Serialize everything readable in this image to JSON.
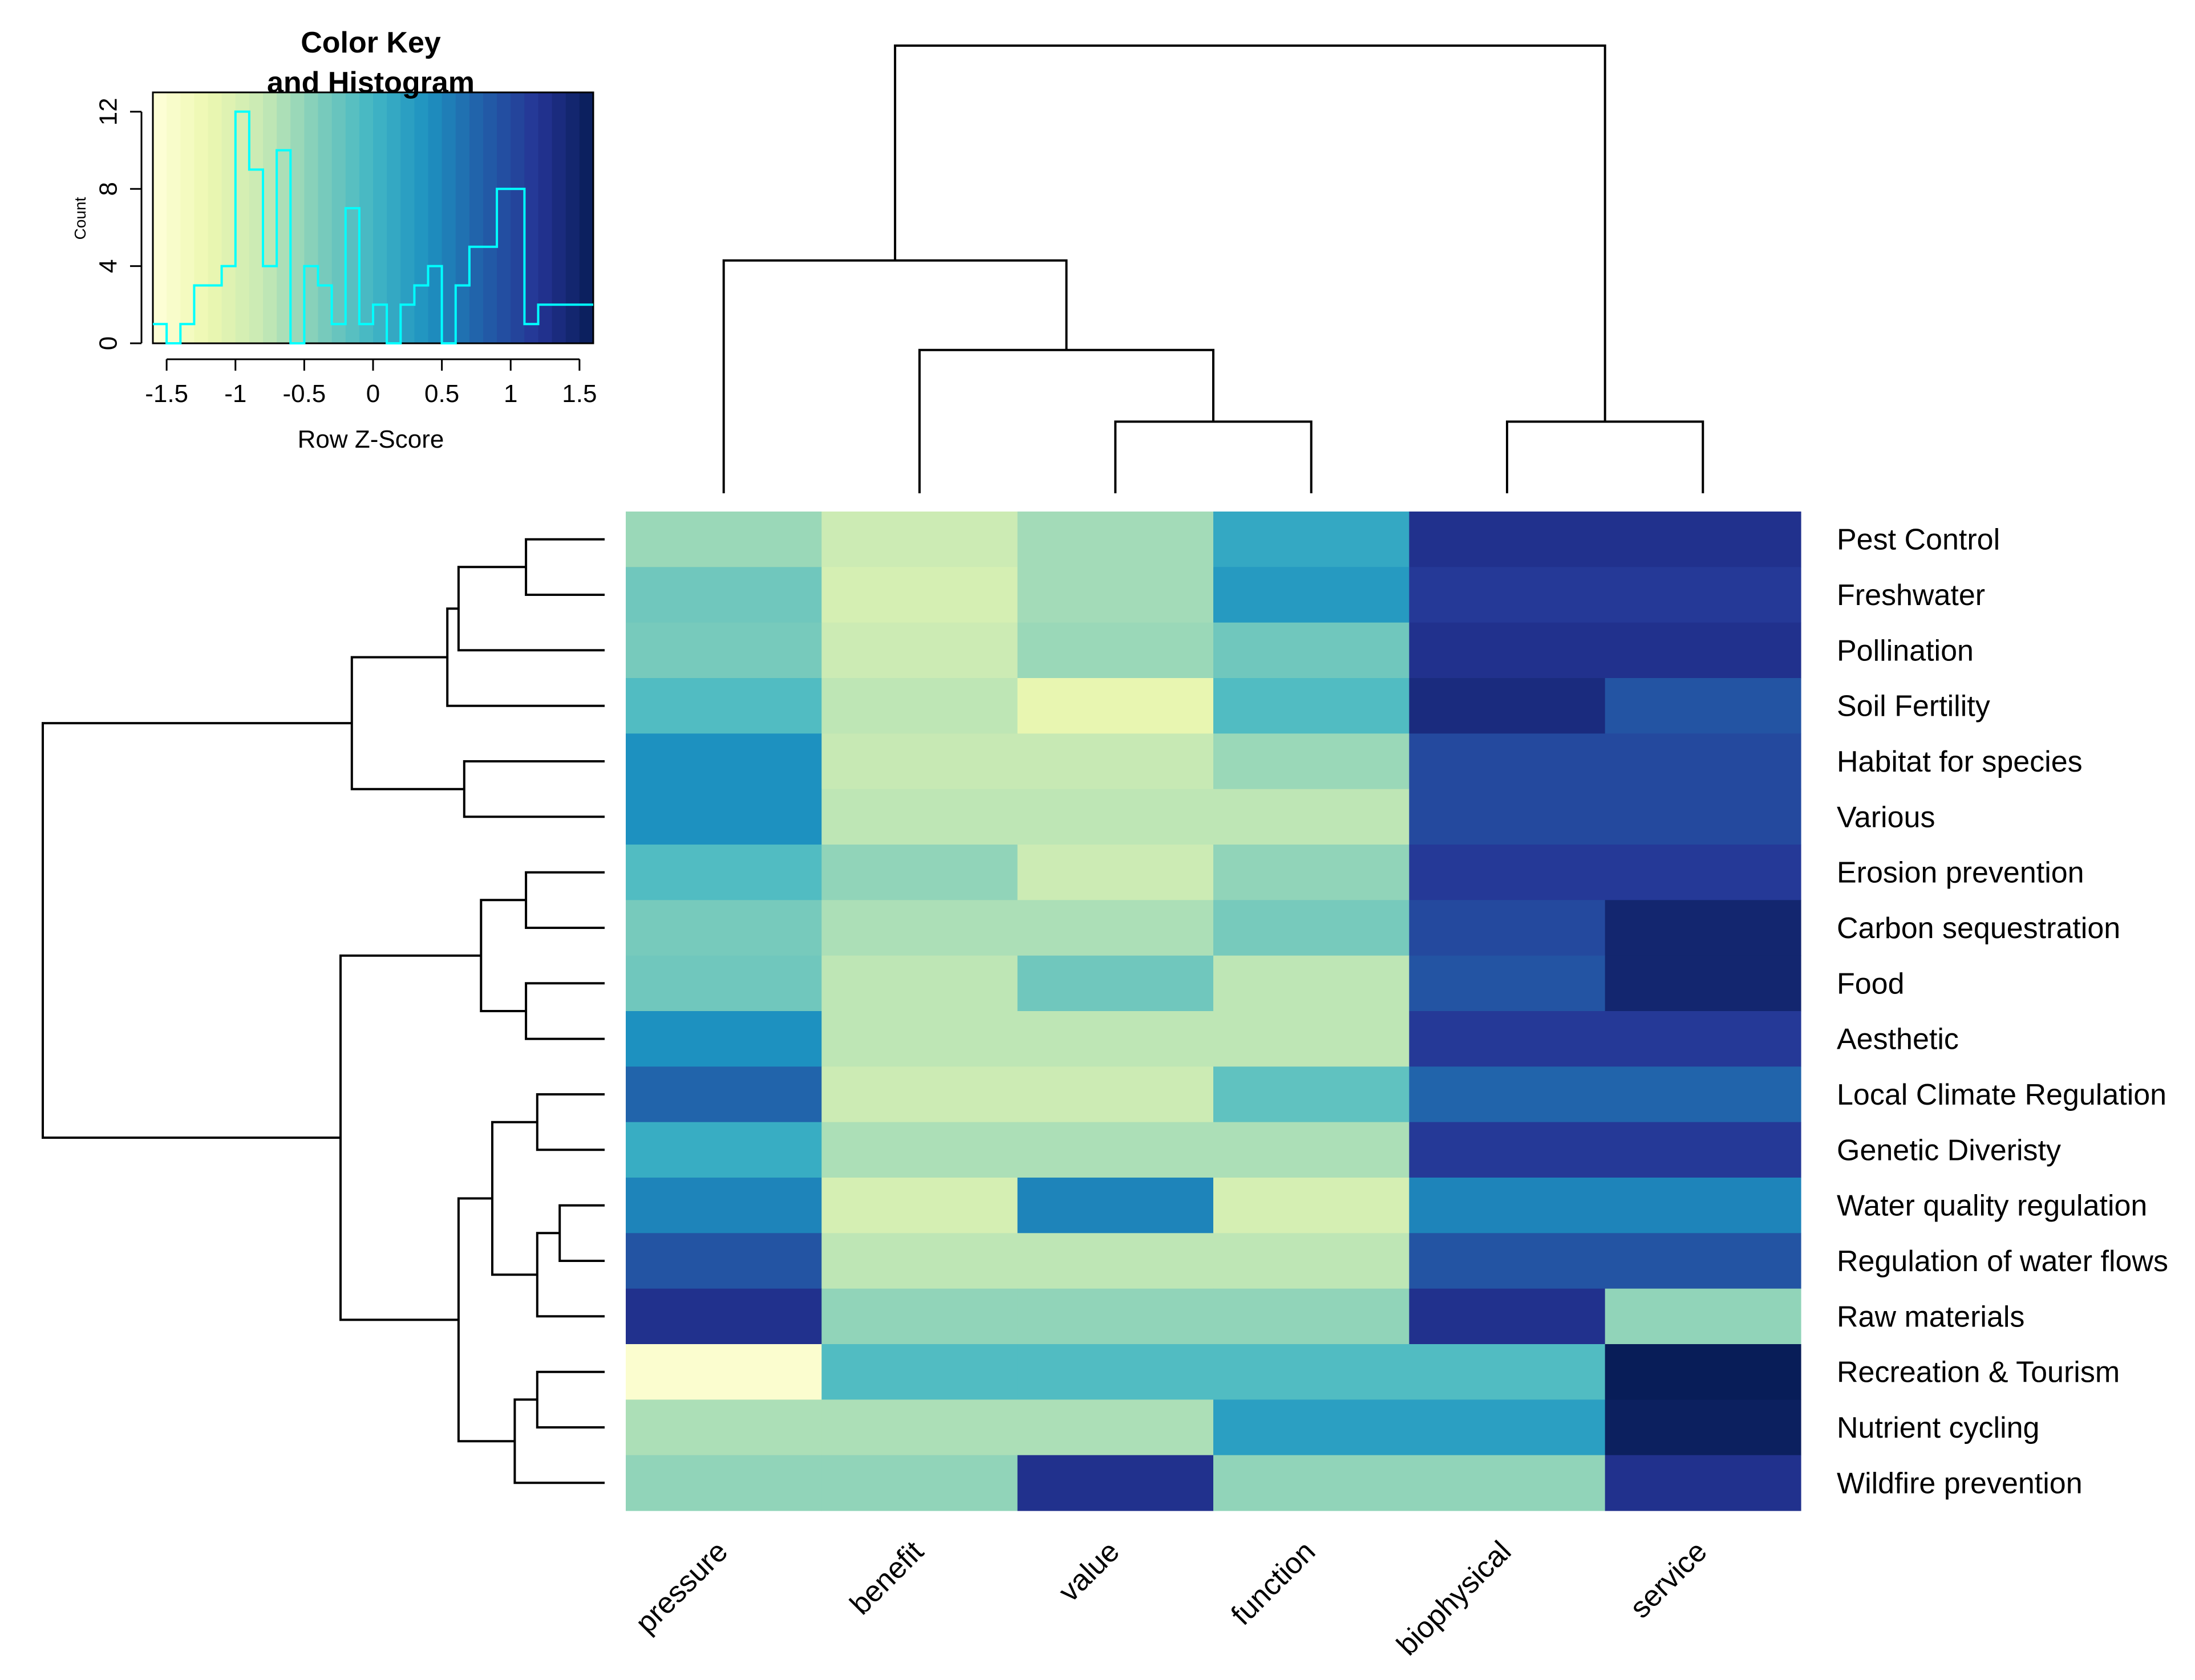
{
  "chart_data": {
    "type": "heatmap",
    "columns": [
      "pressure",
      "benefit",
      "value",
      "function",
      "biophysical",
      "service"
    ],
    "rows": [
      "Pest Control",
      "Freshwater",
      "Pollination",
      "Soil Fertility",
      "Habitat for species",
      "Various",
      "Erosion prevention",
      "Carbon sequestration",
      "Food",
      "Aesthetic",
      "Local Climate Regulation",
      "Genetic Diveristy",
      "Water quality regulation",
      "Regulation of water flows",
      "Raw materials",
      "Recreation & Tourism",
      "Nutrient cycling",
      "Wildfire prevention"
    ],
    "values": [
      [
        -0.55,
        -0.85,
        -0.6,
        0.15,
        1.25,
        1.25
      ],
      [
        -0.3,
        -0.95,
        -0.6,
        0.3,
        1.15,
        1.15
      ],
      [
        -0.35,
        -0.85,
        -0.55,
        -0.3,
        1.25,
        1.25
      ],
      [
        -0.1,
        -0.75,
        -1.15,
        -0.1,
        1.35,
        0.9
      ],
      [
        0.4,
        -0.8,
        -0.8,
        -0.55,
        1.0,
        1.0
      ],
      [
        0.4,
        -0.75,
        -0.75,
        -0.75,
        1.0,
        1.0
      ],
      [
        -0.1,
        -0.5,
        -0.85,
        -0.5,
        1.15,
        1.15
      ],
      [
        -0.35,
        -0.65,
        -0.65,
        -0.35,
        1.0,
        1.45
      ],
      [
        -0.3,
        -0.75,
        -0.3,
        -0.75,
        0.9,
        1.45
      ],
      [
        0.4,
        -0.75,
        -0.75,
        -0.75,
        1.15,
        1.15
      ],
      [
        0.75,
        -0.85,
        -0.85,
        -0.2,
        0.75,
        0.75
      ],
      [
        0.1,
        -0.65,
        -0.65,
        -0.65,
        1.15,
        1.15
      ],
      [
        0.5,
        -0.95,
        0.5,
        -0.95,
        0.5,
        0.5
      ],
      [
        0.9,
        -0.75,
        -0.75,
        -0.75,
        0.9,
        0.9
      ],
      [
        1.25,
        -0.5,
        -0.5,
        -0.5,
        1.25,
        -0.5
      ],
      [
        -1.5,
        -0.1,
        -0.1,
        -0.1,
        -0.1,
        1.6
      ],
      [
        -0.65,
        -0.65,
        -0.65,
        0.25,
        0.25,
        1.55
      ],
      [
        -0.5,
        -0.5,
        1.25,
        -0.5,
        -0.5,
        1.25
      ]
    ],
    "color_scale": [
      "#ffffd9",
      "#edf8b1",
      "#c7e9b4",
      "#7fcdbb",
      "#41b6c4",
      "#1d91c0",
      "#225ea8",
      "#253494",
      "#081d58"
    ],
    "value_range": [
      -1.6,
      1.6
    ],
    "column_dendrogram": [
      {
        "left": 2,
        "right": 3,
        "height": 0.16
      },
      {
        "left": 1,
        "right": "n0",
        "height": 0.32
      },
      {
        "left": 4,
        "right": 5,
        "height": 0.16
      },
      {
        "left": 0,
        "right": "n1",
        "height": 0.52
      },
      {
        "left": "n3",
        "right": "n2",
        "height": 1.0
      }
    ],
    "row_dendrogram": [
      {
        "left": 0,
        "right": 1,
        "height": 0.14
      },
      {
        "left": "n0",
        "right": 2,
        "height": 0.26
      },
      {
        "left": "n1",
        "right": 3,
        "height": 0.28
      },
      {
        "left": 4,
        "right": 5,
        "height": 0.25
      },
      {
        "left": "n2",
        "right": "n3",
        "height": 0.45
      },
      {
        "left": 6,
        "right": 7,
        "height": 0.14
      },
      {
        "left": 8,
        "right": 9,
        "height": 0.14
      },
      {
        "left": "n5",
        "right": "n6",
        "height": 0.22
      },
      {
        "left": 10,
        "right": 11,
        "height": 0.12
      },
      {
        "left": 12,
        "right": 13,
        "height": 0.08
      },
      {
        "left": "n9",
        "right": 14,
        "height": 0.12
      },
      {
        "left": "n8",
        "right": "n10",
        "height": 0.2
      },
      {
        "left": 15,
        "right": 16,
        "height": 0.12
      },
      {
        "left": "n12",
        "right": 17,
        "height": 0.16
      },
      {
        "left": "n11",
        "right": "n13",
        "height": 0.26
      },
      {
        "left": "n7",
        "right": "n14",
        "height": 0.47
      },
      {
        "left": "n4",
        "right": "n15",
        "height": 1.0
      }
    ],
    "color_key": {
      "title_line1": "Color Key",
      "title_line2": "and Histogram",
      "xlabel": "Row Z-Score",
      "ylabel": "Count",
      "x_ticks": [
        -1.5,
        -1,
        -0.5,
        0,
        0.5,
        1,
        1.5
      ],
      "x_tick_labels": [
        "-1.5",
        "-1",
        "-0.5",
        "0",
        "0.5",
        "1",
        "1.5"
      ],
      "y_ticks": [
        0,
        4,
        8,
        12
      ],
      "y_tick_labels": [
        "0",
        "4",
        "8",
        "12"
      ],
      "xlim": [
        -1.6,
        1.6
      ],
      "ylim": [
        0,
        13
      ],
      "histogram_color": "#00ffff",
      "histogram": {
        "edges": [
          -1.6,
          -1.5,
          -1.4,
          -1.3,
          -1.2,
          -1.1,
          -1.0,
          -0.9,
          -0.8,
          -0.7,
          -0.6,
          -0.5,
          -0.4,
          -0.3,
          -0.2,
          -0.1,
          0.0,
          0.1,
          0.2,
          0.3,
          0.4,
          0.5,
          0.6,
          0.7,
          0.8,
          0.9,
          1.0,
          1.1,
          1.2,
          1.3,
          1.4,
          1.5,
          1.6
        ],
        "counts": [
          1,
          0,
          1,
          3,
          3,
          4,
          12,
          9,
          4,
          10,
          0,
          4,
          3,
          1,
          7,
          1,
          2,
          0,
          2,
          3,
          4,
          0,
          3,
          5,
          5,
          8,
          8,
          1,
          2,
          2,
          2,
          2
        ]
      }
    }
  }
}
